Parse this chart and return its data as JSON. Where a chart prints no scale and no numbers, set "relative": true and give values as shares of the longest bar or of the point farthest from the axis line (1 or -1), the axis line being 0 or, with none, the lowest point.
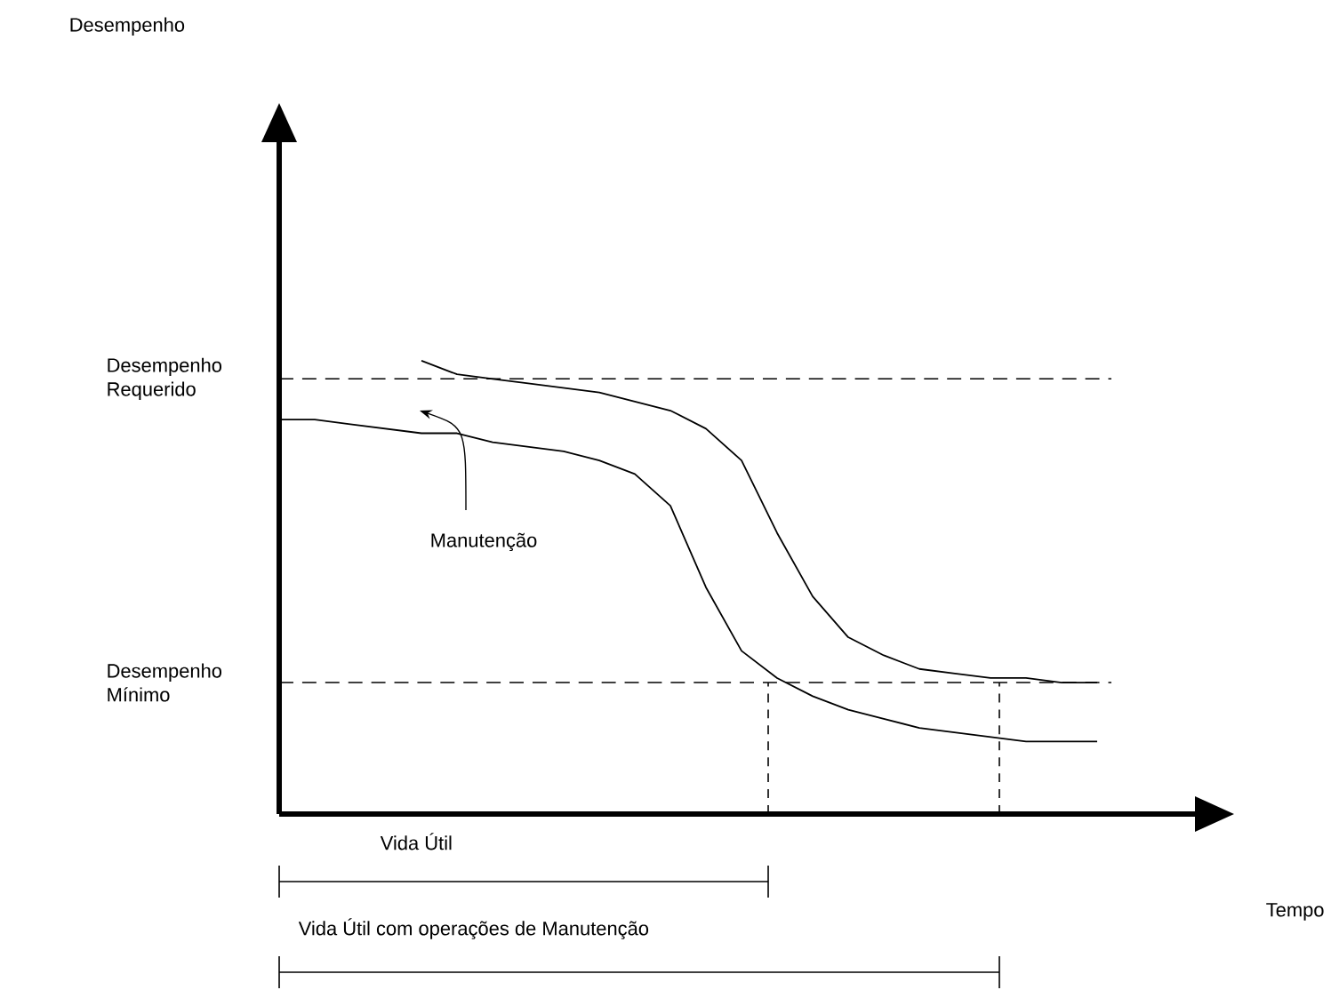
{
  "chart_data": {
    "type": "line",
    "relative": true,
    "line_style": "solid",
    "categories": [
      null,
      null,
      null,
      null,
      null,
      null,
      null,
      null,
      null,
      null,
      null,
      null,
      null,
      null,
      null,
      null,
      null,
      null,
      null,
      null,
      null,
      null,
      null,
      null,
      null
    ],
    "series": [
      {
        "color": "#000000",
        "values": [
          0.87,
          0.87,
          0.86,
          0.85,
          0.84,
          0.84,
          0.82,
          0.81,
          0.8,
          0.78,
          0.75,
          0.68,
          0.5,
          0.36,
          0.3,
          0.26,
          0.23,
          0.21,
          0.19,
          0.18,
          0.17,
          0.16,
          0.16,
          0.16,
          null
        ]
      },
      {
        "color": "#000000",
        "values": [
          null,
          null,
          null,
          null,
          1.0,
          0.97,
          0.96,
          0.95,
          0.94,
          0.93,
          0.91,
          0.89,
          0.85,
          0.78,
          0.62,
          0.48,
          0.39,
          0.35,
          0.32,
          0.31,
          0.3,
          0.3,
          0.29,
          0.29,
          null
        ]
      }
    ],
    "ref_lines": [
      {
        "axis": "y",
        "value": 0.96,
        "label": "Desempenho Requerido",
        "line_style": "dashed",
        "color": "#000000"
      },
      {
        "axis": "y",
        "value": 0.29,
        "label": "Desempenho Mínimo",
        "line_style": "dashed",
        "color": "#000000"
      }
    ],
    "annotations": [
      "Desempenho",
      "Tempo",
      "Manutenção",
      "Vida Útil",
      "Vida Útil com operações de Manutenção"
    ]
  }
}
